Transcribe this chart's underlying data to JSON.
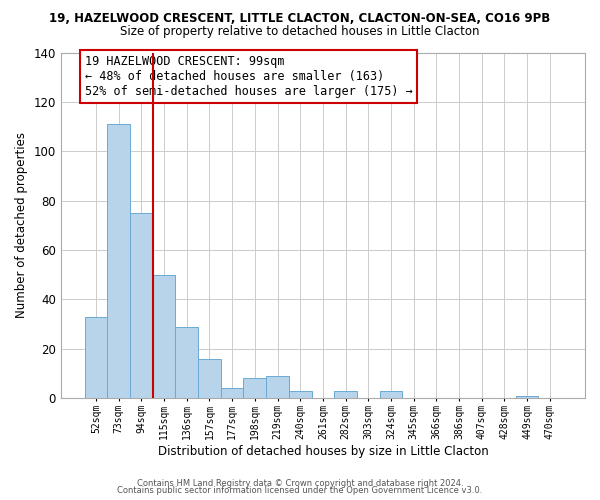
{
  "title_line1": "19, HAZELWOOD CRESCENT, LITTLE CLACTON, CLACTON-ON-SEA, CO16 9PB",
  "title_line2": "Size of property relative to detached houses in Little Clacton",
  "bar_labels": [
    "52sqm",
    "73sqm",
    "94sqm",
    "115sqm",
    "136sqm",
    "157sqm",
    "177sqm",
    "198sqm",
    "219sqm",
    "240sqm",
    "261sqm",
    "282sqm",
    "303sqm",
    "324sqm",
    "345sqm",
    "366sqm",
    "386sqm",
    "407sqm",
    "428sqm",
    "449sqm",
    "470sqm"
  ],
  "bar_values": [
    33,
    111,
    75,
    50,
    29,
    16,
    4,
    8,
    9,
    3,
    0,
    3,
    0,
    3,
    0,
    0,
    0,
    0,
    0,
    1,
    0
  ],
  "bar_color": "#b8d4ea",
  "bar_edge_color": "#6aaad4",
  "vline_x": 2.5,
  "vline_color": "#cc0000",
  "annotation_text": "19 HAZELWOOD CRESCENT: 99sqm\n← 48% of detached houses are smaller (163)\n52% of semi-detached houses are larger (175) →",
  "annotation_box_color": "#ffffff",
  "annotation_box_edge": "#cc0000",
  "xlabel": "Distribution of detached houses by size in Little Clacton",
  "ylabel": "Number of detached properties",
  "ylim": [
    0,
    140
  ],
  "yticks": [
    0,
    20,
    40,
    60,
    80,
    100,
    120,
    140
  ],
  "footer_line1": "Contains HM Land Registry data © Crown copyright and database right 2024.",
  "footer_line2": "Contains public sector information licensed under the Open Government Licence v3.0.",
  "background_color": "#ffffff",
  "grid_color": "#cccccc"
}
